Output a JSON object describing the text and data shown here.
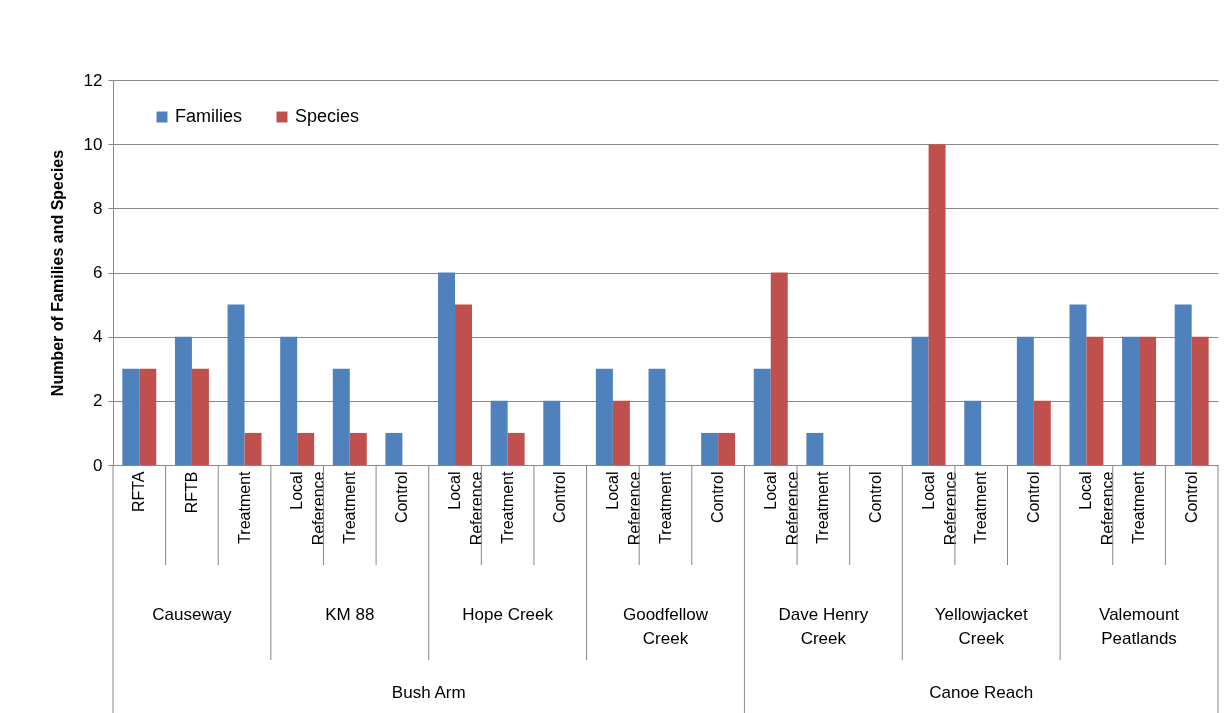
{
  "chart_data": {
    "type": "bar",
    "ylabel": "Number of Families and Species",
    "categories": [
      "RFTA",
      "RFTB",
      "Treatment",
      "Local Reference",
      "Treatment",
      "Control",
      "Local Reference",
      "Treatment",
      "Control",
      "Local Reference",
      "Treatment",
      "Control",
      "Local Reference",
      "Treatment",
      "Control",
      "Local Reference",
      "Treatment",
      "Control",
      "Local Reference",
      "Treatment",
      "Control"
    ],
    "series": [
      {
        "name": "Families",
        "color": "#4f81bd",
        "values": [
          3,
          4,
          5,
          4,
          3,
          1,
          6,
          2,
          2,
          3,
          3,
          1,
          3,
          1,
          0,
          4,
          2,
          4,
          5,
          4,
          5
        ]
      },
      {
        "name": "Species",
        "color": "#c0504d",
        "values": [
          3,
          3,
          1,
          1,
          1,
          0,
          5,
          1,
          0,
          2,
          0,
          1,
          6,
          0,
          0,
          10,
          0,
          2,
          4,
          4,
          4
        ]
      }
    ],
    "ylim": [
      0,
      12
    ],
    "yticks": [
      0,
      2,
      4,
      6,
      8,
      10,
      12
    ],
    "grid": "y",
    "legend": "top left",
    "annotations": [
      "Causeway",
      "KM 88",
      "Hope Creek",
      "Goodfellow Creek",
      "Dave Henry Creek",
      "Yellowjacket Creek",
      "Valemount Peatlands",
      "Bush Arm",
      "Canoe Reach"
    ]
  }
}
